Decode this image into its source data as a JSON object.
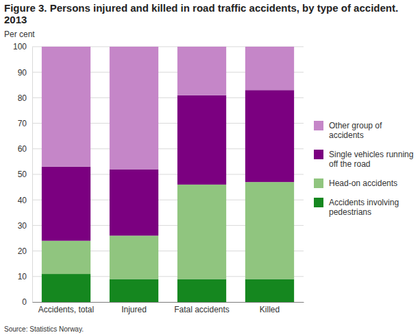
{
  "chart_data": {
    "type": "bar",
    "stacked": true,
    "title": "Figure 3. Persons injured and killed in road traffic accidents, by type of accident. 2013",
    "ylabel": "Per cent",
    "source": "Source: Statistics Norway.",
    "categories": [
      "Accidents, total",
      "Injured",
      "Fatal accidents",
      "Killed"
    ],
    "series": [
      {
        "name": "Accidents involving pedestrians",
        "color": "#15871f",
        "values": [
          11,
          9,
          9,
          9
        ]
      },
      {
        "name": "Head-on accidents",
        "color": "#90c57f",
        "values": [
          13,
          17,
          37,
          38
        ]
      },
      {
        "name": "Single vehicles running off the road",
        "color": "#7b0080",
        "values": [
          29,
          26,
          35,
          36
        ]
      },
      {
        "name": "Other group of accidents",
        "color": "#c586c8",
        "values": [
          47,
          48,
          19,
          17
        ]
      }
    ],
    "ylim": [
      0,
      100
    ],
    "yticks": [
      0,
      10,
      20,
      30,
      40,
      50,
      60,
      70,
      80,
      90,
      100
    ],
    "grid": true,
    "legend": "right"
  }
}
